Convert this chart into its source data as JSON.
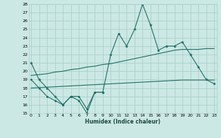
{
  "xlabel": "Humidex (Indice chaleur)",
  "background_color": "#cce8e4",
  "grid_color": "#aacfcc",
  "line_color": "#1a6e64",
  "x_data": [
    0,
    1,
    2,
    3,
    4,
    5,
    6,
    7,
    8,
    9,
    10,
    11,
    12,
    13,
    14,
    15,
    16,
    17,
    18,
    19,
    20,
    21,
    22,
    23
  ],
  "line_top": [
    21,
    19,
    null,
    null,
    null,
    null,
    null,
    null,
    null,
    null,
    22,
    24.5,
    23,
    25,
    28,
    25.5,
    null,
    23,
    23,
    23.5,
    22,
    20.5,
    19,
    18.5
  ],
  "line_jagged": [
    21,
    19,
    18,
    17,
    16,
    17,
    16.5,
    15,
    17.5,
    17.5,
    22,
    24.5,
    23,
    25,
    28,
    25.5,
    22.5,
    23,
    23,
    23.5,
    22,
    20.5,
    19,
    18.5
  ],
  "line_lower": [
    19,
    18,
    17,
    16.5,
    16,
    17,
    17,
    15.5,
    17.5,
    17.5,
    null,
    null,
    null,
    null,
    null,
    null,
    null,
    null,
    null,
    null,
    null,
    null,
    null,
    null
  ],
  "trend_upper": [
    19.5,
    19.6,
    19.7,
    19.9,
    20.0,
    20.2,
    20.3,
    20.5,
    20.6,
    20.8,
    20.9,
    21.1,
    21.3,
    21.5,
    21.7,
    21.9,
    22.1,
    22.3,
    22.5,
    22.6,
    22.6,
    22.6,
    22.7,
    22.7
  ],
  "trend_lower": [
    18.0,
    18.05,
    18.1,
    18.15,
    18.2,
    18.25,
    18.3,
    18.35,
    18.4,
    18.45,
    18.5,
    18.55,
    18.6,
    18.65,
    18.7,
    18.75,
    18.8,
    18.85,
    18.9,
    18.95,
    18.95,
    18.95,
    18.95,
    18.95
  ],
  "ylim": [
    15,
    28
  ],
  "xlim": [
    -0.3,
    23.3
  ],
  "yticks": [
    15,
    16,
    17,
    18,
    19,
    20,
    21,
    22,
    23,
    24,
    25,
    26,
    27,
    28
  ],
  "xticks": [
    0,
    1,
    2,
    3,
    4,
    5,
    6,
    7,
    8,
    9,
    10,
    11,
    12,
    13,
    14,
    15,
    16,
    17,
    18,
    19,
    20,
    21,
    22,
    23
  ]
}
